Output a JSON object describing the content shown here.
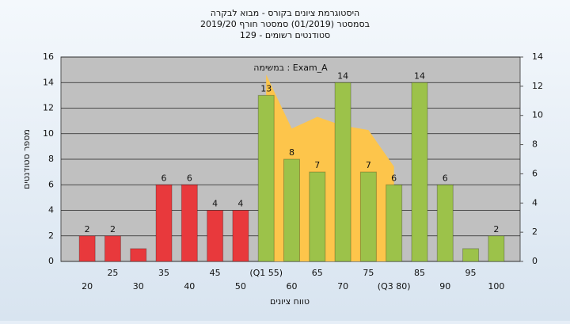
{
  "chart_data": {
    "type": "bar",
    "title": [
      "היסטוגרמת ציונים בקורס - מבוא לבקרה",
      "בסמסטר  (01/2019)  סמסטר חורף 2019/20",
      "סטודנטים רשומים - 129"
    ],
    "annotation": "במשימה : Exam_A",
    "ylabel": "מספר סטודנטים",
    "xlabel": "טווח ציונים",
    "categories": [
      "20",
      "25",
      "30",
      "35",
      "40",
      "45",
      "50",
      "(Q1 55)",
      "60",
      "65",
      "70",
      "75",
      "(Q3 80)",
      "85",
      "90",
      "95",
      "100"
    ],
    "values": [
      2,
      2,
      1,
      6,
      6,
      4,
      4,
      13,
      8,
      7,
      14,
      7,
      6,
      14,
      6,
      1,
      2
    ],
    "value_labels": [
      "2",
      "2",
      null,
      "6",
      "6",
      "4",
      "4",
      "13",
      "8",
      "7",
      "14",
      "7",
      "6",
      "14",
      "6",
      null,
      "2"
    ],
    "bar_colors": [
      "#e8393c",
      "#e8393c",
      "#e8393c",
      "#e8393c",
      "#e8393c",
      "#e8393c",
      "#e8393c",
      "#9cc24a",
      "#9cc24a",
      "#9cc24a",
      "#9cc24a",
      "#9cc24a",
      "#9cc24a",
      "#9cc24a",
      "#9cc24a",
      "#9cc24a",
      "#9cc24a"
    ],
    "area": {
      "color": "#fdc54b",
      "axis": "y2",
      "values": [
        null,
        null,
        null,
        null,
        null,
        null,
        null,
        12.8,
        9.1,
        9.9,
        9.3,
        9.0,
        6.5,
        null,
        null,
        null,
        null
      ]
    },
    "ylim": [
      0,
      16
    ],
    "yticks": [
      0,
      2,
      4,
      6,
      8,
      10,
      12,
      14,
      16
    ],
    "y2lim": [
      0,
      14
    ],
    "y2ticks": [
      0,
      2,
      4,
      6,
      8,
      10,
      12,
      14
    ],
    "grid": true
  }
}
